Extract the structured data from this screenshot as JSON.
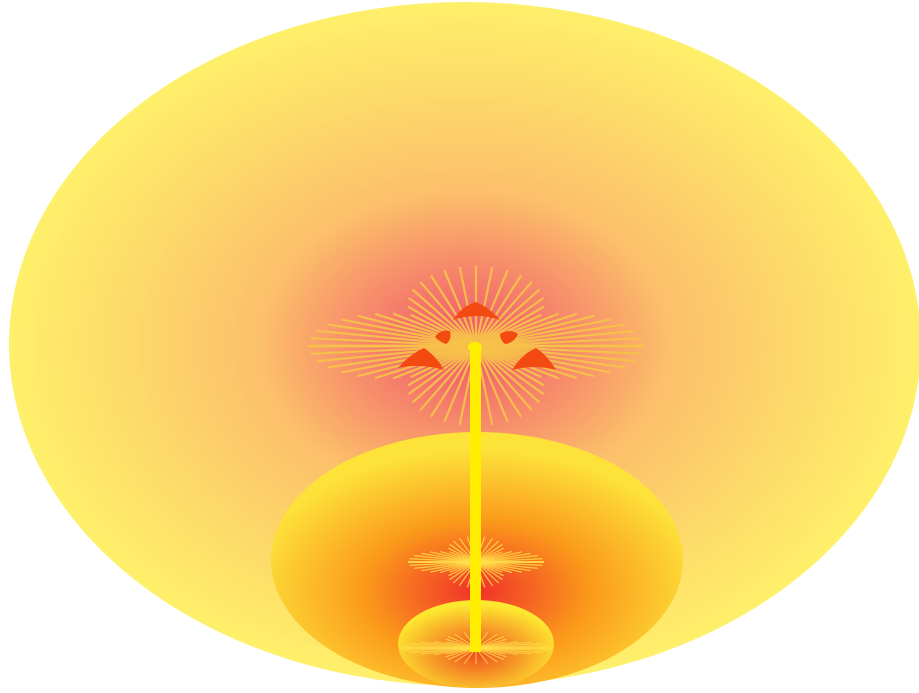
{
  "scene": {
    "colors": {
      "background": "#ffffff",
      "outer_edge": "#fef06a",
      "outer_mid": "#fcc06a",
      "outer_core": "#f0506c",
      "middle_edge": "#fde23a",
      "middle_mid": "#fb9a1a",
      "middle_core": "#f0302a",
      "inner_edge": "#fde830",
      "inner_core": "#f04a1e",
      "stem": "#ffee00",
      "rays": "#f7c14a",
      "rays_bright": "#ffe14a",
      "petals": "#f24a10"
    },
    "icons": [
      "stem",
      "large-starburst",
      "small-starburst",
      "tiny-starburst",
      "red-petals"
    ]
  }
}
